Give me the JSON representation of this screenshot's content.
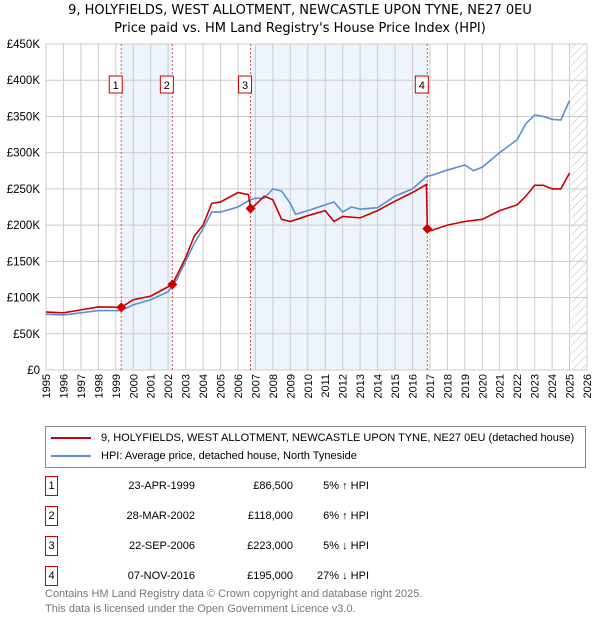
{
  "header": {
    "title": "9, HOLYFIELDS, WEST ALLOTMENT, NEWCASTLE UPON TYNE, NE27 0EU",
    "subtitle": "Price paid vs. HM Land Registry's House Price Index (HPI)"
  },
  "chart_data": {
    "type": "line",
    "xlim": [
      1995,
      2026
    ],
    "ylim": [
      0,
      450000
    ],
    "x_ticks": [
      "1995",
      "1996",
      "1997",
      "1998",
      "1999",
      "2000",
      "2001",
      "2002",
      "2003",
      "2004",
      "2005",
      "2006",
      "2007",
      "2008",
      "2009",
      "2010",
      "2011",
      "2012",
      "2013",
      "2014",
      "2015",
      "2016",
      "2017",
      "2018",
      "2019",
      "2020",
      "2021",
      "2022",
      "2023",
      "2024",
      "2025",
      "2026"
    ],
    "y_ticks": [
      {
        "v": 0,
        "label": "£0"
      },
      {
        "v": 50000,
        "label": "£50K"
      },
      {
        "v": 100000,
        "label": "£100K"
      },
      {
        "v": 150000,
        "label": "£150K"
      },
      {
        "v": 200000,
        "label": "£200K"
      },
      {
        "v": 250000,
        "label": "£250K"
      },
      {
        "v": 300000,
        "label": "£300K"
      },
      {
        "v": 350000,
        "label": "£350K"
      },
      {
        "v": 400000,
        "label": "£400K"
      },
      {
        "v": 450000,
        "label": "£450K"
      }
    ],
    "shaded_ranges": [
      [
        1999.31,
        2002.24
      ],
      [
        2006.72,
        2016.85
      ]
    ],
    "forecast_hatch_from": 2025.1,
    "series": [
      {
        "name": "9, HOLYFIELDS, WEST ALLOTMENT, NEWCASTLE UPON TYNE, NE27 0EU (detached house)",
        "color": "#cc0000",
        "points": [
          [
            1995,
            80000
          ],
          [
            1996,
            79000
          ],
          [
            1997,
            83000
          ],
          [
            1998,
            87000
          ],
          [
            1999.31,
            86500
          ],
          [
            2000,
            97000
          ],
          [
            2001,
            102000
          ],
          [
            2002.24,
            118000
          ],
          [
            2003,
            155000
          ],
          [
            2003.5,
            185000
          ],
          [
            2004,
            200000
          ],
          [
            2004.5,
            230000
          ],
          [
            2005,
            232000
          ],
          [
            2006,
            245000
          ],
          [
            2006.6,
            242000
          ],
          [
            2006.72,
            223000
          ],
          [
            2007,
            228000
          ],
          [
            2007.5,
            240000
          ],
          [
            2008,
            235000
          ],
          [
            2008.5,
            208000
          ],
          [
            2009,
            205000
          ],
          [
            2010,
            213000
          ],
          [
            2011,
            220000
          ],
          [
            2011.5,
            205000
          ],
          [
            2012,
            212000
          ],
          [
            2013,
            210000
          ],
          [
            2014,
            220000
          ],
          [
            2015,
            233000
          ],
          [
            2016,
            245000
          ],
          [
            2016.8,
            256000
          ],
          [
            2016.85,
            195000
          ],
          [
            2017,
            192000
          ],
          [
            2018,
            200000
          ],
          [
            2019,
            205000
          ],
          [
            2020,
            208000
          ],
          [
            2021,
            220000
          ],
          [
            2022,
            228000
          ],
          [
            2022.5,
            240000
          ],
          [
            2023,
            255000
          ],
          [
            2023.5,
            255000
          ],
          [
            2024,
            250000
          ],
          [
            2024.5,
            250000
          ],
          [
            2025,
            272000
          ]
        ]
      },
      {
        "name": "HPI: Average price, detached house, North Tyneside",
        "color": "#5b8fd6",
        "points": [
          [
            1995,
            77000
          ],
          [
            1996,
            76000
          ],
          [
            1997,
            79000
          ],
          [
            1998,
            82000
          ],
          [
            1999.31,
            82000
          ],
          [
            2000,
            90000
          ],
          [
            2001,
            97000
          ],
          [
            2002,
            108000
          ],
          [
            2002.5,
            125000
          ],
          [
            2003,
            150000
          ],
          [
            2003.5,
            175000
          ],
          [
            2004,
            195000
          ],
          [
            2004.5,
            218000
          ],
          [
            2005,
            218000
          ],
          [
            2006,
            225000
          ],
          [
            2006.7,
            235000
          ],
          [
            2007,
            237000
          ],
          [
            2007.5,
            237000
          ],
          [
            2008,
            250000
          ],
          [
            2008.5,
            247000
          ],
          [
            2009,
            230000
          ],
          [
            2009.3,
            215000
          ],
          [
            2010,
            220000
          ],
          [
            2011,
            228000
          ],
          [
            2011.5,
            232000
          ],
          [
            2012,
            218000
          ],
          [
            2012.5,
            225000
          ],
          [
            2013,
            222000
          ],
          [
            2014,
            224000
          ],
          [
            2015,
            240000
          ],
          [
            2016,
            250000
          ],
          [
            2016.85,
            268000
          ],
          [
            2017,
            268000
          ],
          [
            2018,
            276000
          ],
          [
            2019,
            283000
          ],
          [
            2019.5,
            275000
          ],
          [
            2020,
            280000
          ],
          [
            2021,
            300000
          ],
          [
            2022,
            318000
          ],
          [
            2022.5,
            340000
          ],
          [
            2023,
            352000
          ],
          [
            2023.5,
            350000
          ],
          [
            2024,
            346000
          ],
          [
            2024.5,
            345000
          ],
          [
            2025,
            372000
          ]
        ]
      }
    ],
    "sales": [
      {
        "n": "1",
        "x": 1999.31,
        "y": 86500,
        "date": "23-APR-1999",
        "price": "£86,500",
        "hpi": "5% ↑ HPI"
      },
      {
        "n": "2",
        "x": 2002.24,
        "y": 118000,
        "date": "28-MAR-2002",
        "price": "£118,000",
        "hpi": "6% ↑ HPI"
      },
      {
        "n": "3",
        "x": 2006.72,
        "y": 223000,
        "date": "22-SEP-2006",
        "price": "£223,000",
        "hpi": "5% ↓ HPI"
      },
      {
        "n": "4",
        "x": 2016.85,
        "y": 195000,
        "date": "07-NOV-2016",
        "price": "£195,000",
        "hpi": "27% ↓ HPI"
      }
    ]
  },
  "legend": {
    "red": "9, HOLYFIELDS, WEST ALLOTMENT, NEWCASTLE UPON TYNE, NE27 0EU (detached house)",
    "blue": "HPI: Average price, detached house, North Tyneside"
  },
  "footer": {
    "line1": "Contains HM Land Registry data © Crown copyright and database right 2025.",
    "line2": "This data is licensed under the Open Government Licence v3.0."
  }
}
